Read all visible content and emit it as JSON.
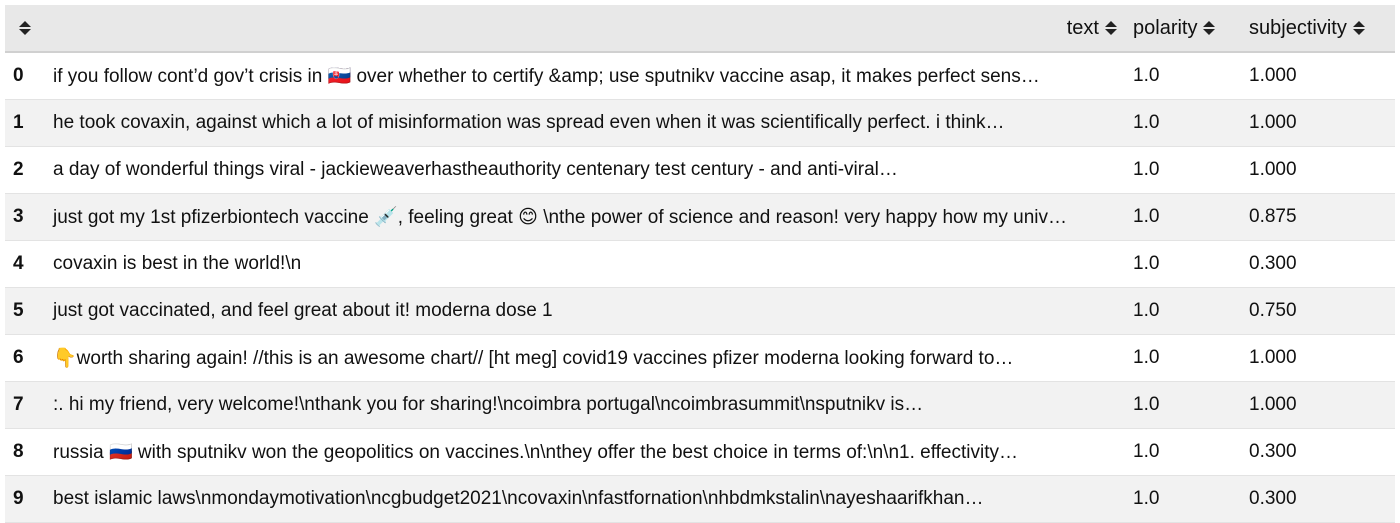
{
  "columns": {
    "text": "text",
    "polarity": "polarity",
    "subjectivity": "subjectivity"
  },
  "rows": [
    {
      "index": "0",
      "text": "if you follow cont’d gov’t crisis in 🇸🇰 over whether to certify &amp; use sputnikv vaccine asap, it makes perfect sens…",
      "polarity": "1.0",
      "subjectivity": "1.000"
    },
    {
      "index": "1",
      "text": "he took covaxin, against which a lot of misinformation was spread even when it was scientifically perfect. i think…",
      "polarity": "1.0",
      "subjectivity": "1.000"
    },
    {
      "index": "2",
      "text": "a day of wonderful things viral - jackieweaverhastheauthority centenary test century - and anti-viral…",
      "polarity": "1.0",
      "subjectivity": "1.000"
    },
    {
      "index": "3",
      "text": "just got my 1st pfizerbiontech vaccine 💉, feeling great 😊 \\nthe power of science and reason! very happy how my univ…",
      "polarity": "1.0",
      "subjectivity": "0.875"
    },
    {
      "index": "4",
      "text": "covaxin is best in the world!\\n",
      "polarity": "1.0",
      "subjectivity": "0.300"
    },
    {
      "index": "5",
      "text": "just got vaccinated, and feel great about it! moderna dose 1",
      "polarity": "1.0",
      "subjectivity": "0.750"
    },
    {
      "index": "6",
      "text": "👇worth sharing again! //this is an awesome chart// [ht meg] covid19 vaccines pfizer moderna looking forward to…",
      "polarity": "1.0",
      "subjectivity": "1.000"
    },
    {
      "index": "7",
      "text": ":. hi my friend, very welcome!\\nthank you for sharing!\\ncoimbra portugal\\ncoimbrasummit\\nsputnikv is…",
      "polarity": "1.0",
      "subjectivity": "1.000"
    },
    {
      "index": "8",
      "text": "russia 🇷🇺 with sputnikv won the geopolitics on vaccines.\\n\\nthey offer the best choice in terms of:\\n\\n1. effectivity…",
      "polarity": "1.0",
      "subjectivity": "0.300"
    },
    {
      "index": "9",
      "text": "best islamic laws\\nmondaymotivation\\ncgbudget2021\\ncovaxin\\nfastfornation\\nhbdmkstalin\\nayeshaarifkhan…",
      "polarity": "1.0",
      "subjectivity": "0.300"
    }
  ]
}
